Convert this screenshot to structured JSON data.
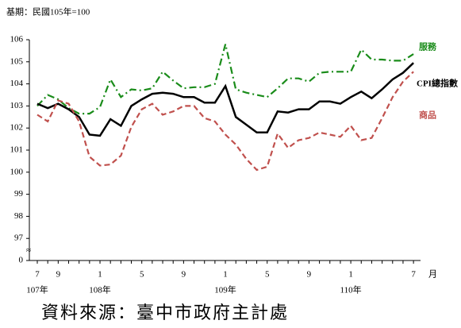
{
  "chart_data": {
    "type": "line",
    "subtitle": "基期：民國105年=100",
    "source": "資料來源：臺中市政府主計處",
    "x_unit": "月",
    "axis_break": "≈",
    "categories": [
      "7",
      null,
      "9",
      null,
      null,
      null,
      "1",
      null,
      null,
      null,
      "5",
      null,
      null,
      null,
      "9",
      null,
      null,
      null,
      "1",
      null,
      null,
      null,
      "5",
      null,
      null,
      null,
      "9",
      null,
      null,
      null,
      "1",
      null,
      null,
      null,
      null,
      null,
      "7"
    ],
    "year_labels": [
      {
        "index": 0,
        "label": "107年"
      },
      {
        "index": 6,
        "label": "108年"
      },
      {
        "index": 18,
        "label": "109年"
      },
      {
        "index": 30,
        "label": "110年"
      }
    ],
    "ylim": [
      96,
      106
    ],
    "yticks": [
      {
        "value": 96,
        "label": "0"
      },
      97,
      98,
      99,
      100,
      101,
      102,
      103,
      104,
      105,
      106
    ],
    "grid": false,
    "series": [
      {
        "name": "服務",
        "color": "#1a8c1a",
        "style": "dashdot",
        "values": [
          103.0,
          103.5,
          103.3,
          102.9,
          102.65,
          102.65,
          102.95,
          104.2,
          103.4,
          103.75,
          103.7,
          103.8,
          104.55,
          104.15,
          103.8,
          103.85,
          103.85,
          104.0,
          105.8,
          103.75,
          103.6,
          103.5,
          103.4,
          103.8,
          104.25,
          104.25,
          104.1,
          104.5,
          104.55,
          104.55,
          104.55,
          105.55,
          105.1,
          105.1,
          105.05,
          105.05,
          105.35
        ]
      },
      {
        "name": "CPI總指數",
        "color": "#000000",
        "style": "solid",
        "values": [
          103.1,
          102.9,
          103.1,
          102.85,
          102.5,
          101.7,
          101.65,
          102.4,
          102.1,
          103.0,
          103.3,
          103.55,
          103.6,
          103.55,
          103.4,
          103.4,
          103.15,
          103.15,
          103.9,
          102.5,
          102.15,
          101.8,
          101.8,
          102.75,
          102.7,
          102.85,
          102.85,
          103.2,
          103.2,
          103.1,
          103.4,
          103.65,
          103.35,
          103.75,
          104.2,
          104.5,
          104.95
        ]
      },
      {
        "name": "商品",
        "color": "#c0504d",
        "style": "dashed",
        "values": [
          102.6,
          102.3,
          103.25,
          103.1,
          102.3,
          100.7,
          100.3,
          100.35,
          100.75,
          102.05,
          102.85,
          103.1,
          102.6,
          102.75,
          103.0,
          103.0,
          102.45,
          102.3,
          101.7,
          101.25,
          100.6,
          100.1,
          100.25,
          101.75,
          101.1,
          101.45,
          101.55,
          101.8,
          101.7,
          101.6,
          102.1,
          101.45,
          101.55,
          102.45,
          103.4,
          104.1,
          104.55
        ]
      }
    ]
  }
}
